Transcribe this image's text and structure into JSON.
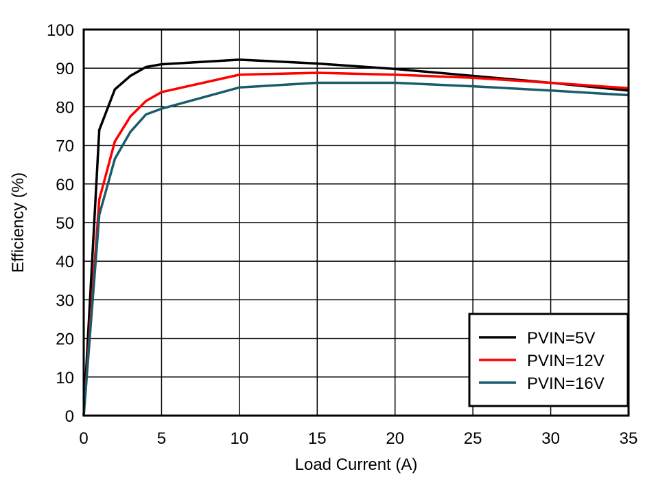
{
  "chart_data": {
    "type": "line",
    "title": "",
    "xlabel": "Load Current (A)",
    "ylabel": "Efficiency  (%)",
    "xlim": [
      0,
      35
    ],
    "ylim": [
      0,
      100
    ],
    "xticks": [
      0,
      5,
      10,
      15,
      20,
      25,
      30,
      35
    ],
    "yticks": [
      0,
      10,
      20,
      30,
      40,
      50,
      60,
      70,
      80,
      90,
      100
    ],
    "grid": true,
    "legend_position": "bottom-right",
    "x": [
      0,
      1,
      2,
      3,
      4,
      5,
      10,
      15,
      20,
      25,
      30,
      35
    ],
    "series": [
      {
        "name": "PVIN=5V",
        "color": "#000000",
        "values": [
          0,
          74,
          84.5,
          88,
          90.3,
          91,
          92.2,
          91.2,
          89.8,
          88,
          86.2,
          84.2
        ]
      },
      {
        "name": "PVIN=12V",
        "color": "#ff0000",
        "values": [
          0,
          56,
          71,
          77.5,
          81.5,
          83.8,
          88.3,
          88.8,
          88.3,
          87.5,
          86.2,
          84.8
        ]
      },
      {
        "name": "PVIN=16V",
        "color": "#1b5b6b",
        "values": [
          0,
          52,
          66.5,
          73.5,
          78,
          79.5,
          85,
          86.2,
          86.2,
          85.3,
          84.2,
          83
        ]
      }
    ]
  }
}
